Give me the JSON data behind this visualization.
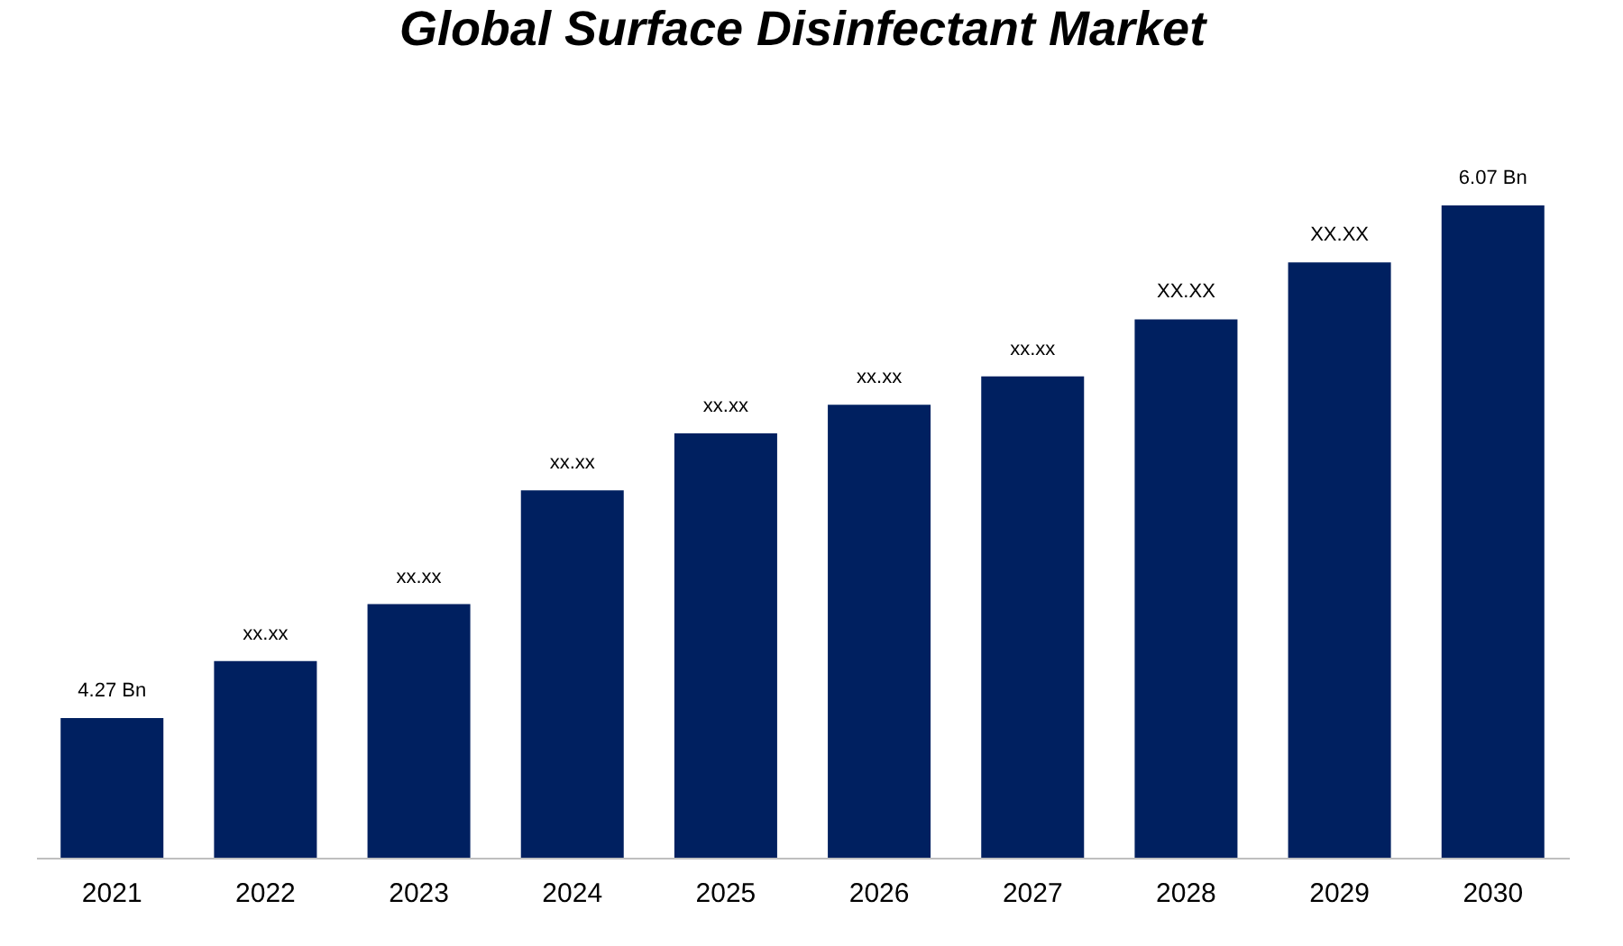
{
  "chart_data": {
    "type": "bar",
    "title": "Global Surface Disinfectant Market",
    "categories": [
      "2021",
      "2022",
      "2023",
      "2024",
      "2025",
      "2026",
      "2027",
      "2028",
      "2029",
      "2030"
    ],
    "values": [
      4.27,
      4.47,
      4.67,
      5.07,
      5.27,
      5.37,
      5.47,
      5.67,
      5.87,
      6.07
    ],
    "value_labels": [
      "4.27 Bn",
      "xx.xx",
      "xx.xx",
      "xx.xx",
      "xx.xx",
      "xx.xx",
      "xx.xx",
      "XX.XX",
      "XX.XX",
      "6.07 Bn"
    ],
    "ylim": [
      3.78,
      6.07
    ],
    "tick_labels": "x",
    "color": "#002060"
  }
}
